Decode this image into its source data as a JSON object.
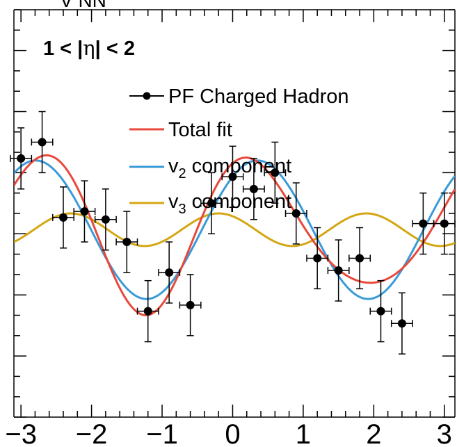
{
  "chart_data": {
    "type": "scatter",
    "top_fragment": "V  NN",
    "annotation": {
      "prefix": "1 < |",
      "symbol": "η",
      "suffix": "| < 2"
    },
    "xlim": [
      -3.1,
      3.15
    ],
    "ylim": [
      0,
      10
    ],
    "x_ticks": [
      "−3",
      "−2",
      "−1",
      "0",
      "1",
      "2",
      "3"
    ],
    "x_tick_values": [
      -3,
      -2,
      -1,
      0,
      1,
      2,
      3
    ],
    "grid": false,
    "legend_position": "top-right",
    "points": {
      "name": "PF Charged Hadron",
      "color": "#000000",
      "x": [
        -3.0,
        -2.7,
        -2.4,
        -2.1,
        -1.8,
        -1.5,
        -1.2,
        -0.9,
        -0.6,
        -0.3,
        0.0,
        0.3,
        0.6,
        0.9,
        1.2,
        1.5,
        1.8,
        2.1,
        2.4,
        2.7,
        3.0
      ],
      "y": [
        6.35,
        6.75,
        4.9,
        5.05,
        4.85,
        4.3,
        2.6,
        3.55,
        2.75,
        5.25,
        5.9,
        5.6,
        6.0,
        5.0,
        3.9,
        3.6,
        3.9,
        2.6,
        2.3,
        4.75,
        4.75
      ],
      "yerr": [
        0.75,
        0.75,
        0.75,
        0.75,
        0.75,
        0.75,
        0.75,
        0.75,
        0.75,
        0.75,
        0.75,
        0.75,
        0.75,
        0.75,
        0.75,
        0.75,
        0.75,
        0.75,
        0.75,
        0.75,
        0.75
      ],
      "xerr": 0.15
    },
    "curves": [
      {
        "name": "Total fit",
        "color": "#e8493b",
        "c0": 4.6,
        "terms": [
          [
            2,
            1.7,
            0.35
          ],
          [
            3,
            0.4,
            -0.2
          ]
        ]
      },
      {
        "name": "v",
        "sub": "2",
        "name_suffix": " component",
        "color": "#3a9ad9",
        "c0": 4.6,
        "terms": [
          [
            2,
            1.7,
            0.35
          ]
        ]
      },
      {
        "name": "v",
        "sub": "3",
        "name_suffix": " component",
        "color": "#d4a612",
        "c0": 4.6,
        "terms": [
          [
            3,
            0.4,
            -0.2
          ]
        ]
      }
    ]
  }
}
